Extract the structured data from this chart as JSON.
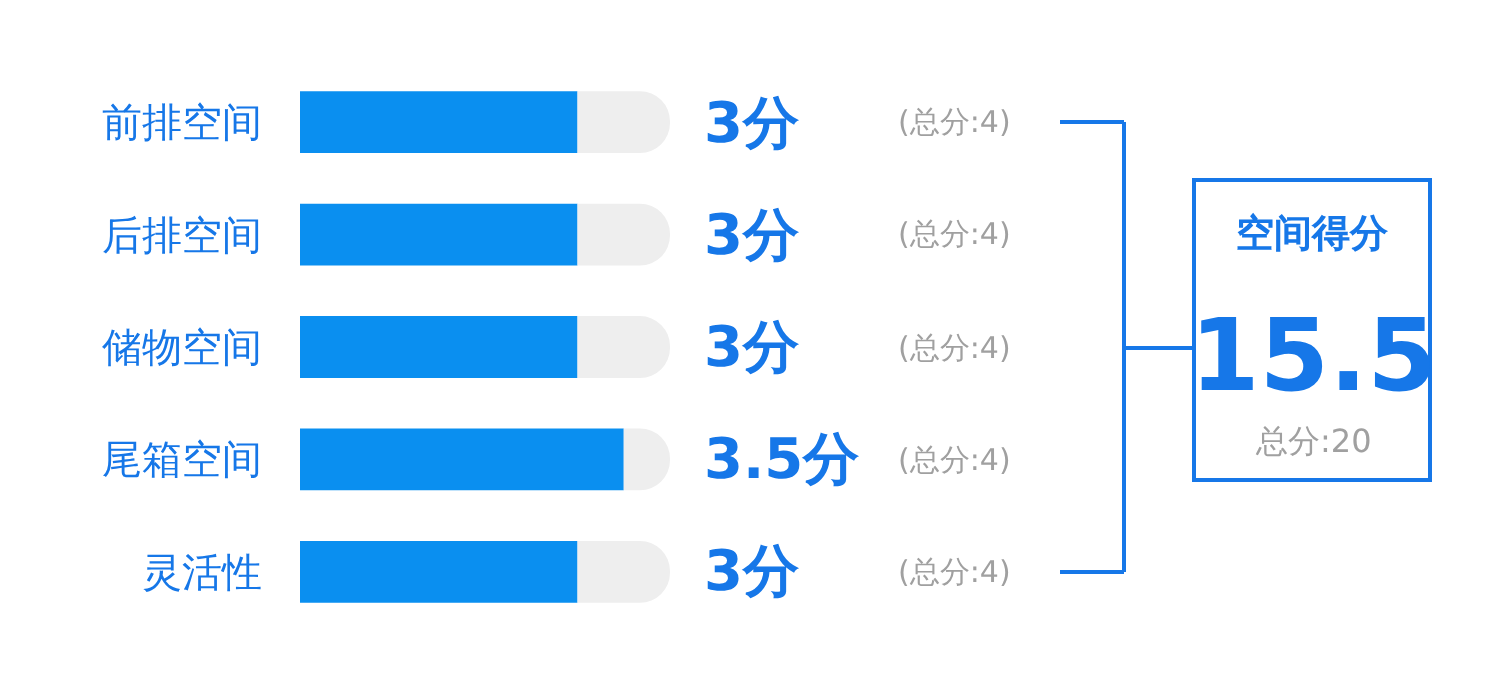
{
  "chart_data": {
    "type": "bar",
    "orientation": "horizontal",
    "categories": [
      "前排空间",
      "后排空间",
      "储物空间",
      "尾箱空间",
      "灵活性"
    ],
    "xlim": [
      0,
      4
    ],
    "tick_labels": "y",
    "stacked": true,
    "series": [
      {
        "color": "#0a8ff0",
        "values": [
          3,
          3,
          3,
          3.5,
          3
        ],
        "value_labels": [
          "3分",
          "3分",
          "3分",
          "3.5分",
          "3分"
        ]
      },
      {
        "color": "#eeeeee",
        "values": [
          1,
          1,
          1,
          0.5,
          1
        ]
      }
    ],
    "annotations": [
      "空间得分",
      "15.5",
      "总分:20",
      "(总分:4)",
      "(总分:4)",
      "(总分:4)",
      "(总分:4)",
      "(总分:4)"
    ]
  }
}
